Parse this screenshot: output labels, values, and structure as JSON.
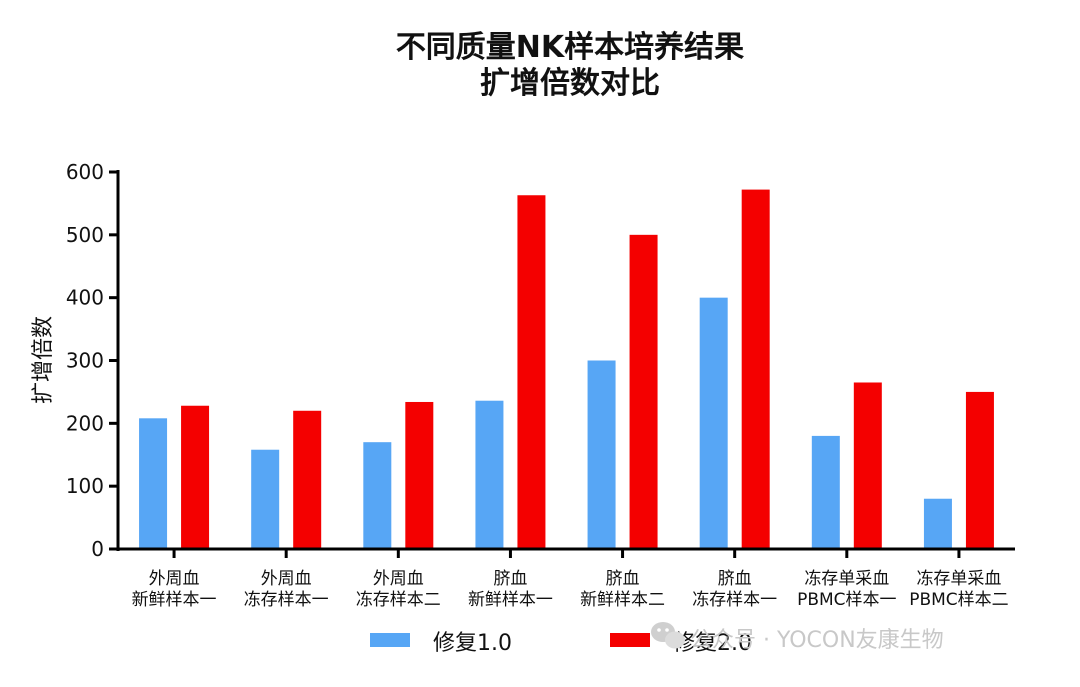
{
  "chart_data": {
    "type": "bar",
    "title": [
      "不同质量NK样本培养结果",
      "扩增倍数对比"
    ],
    "ylabel": "扩增倍数",
    "xlabel": "",
    "ylim": [
      0,
      600
    ],
    "yticks": [
      0,
      100,
      200,
      300,
      400,
      500,
      600
    ],
    "categories": [
      [
        "外周血",
        "新鲜样本一"
      ],
      [
        "外周血",
        "冻存样本一"
      ],
      [
        "外周血",
        "冻存样本二"
      ],
      [
        "脐血",
        "新鲜样本一"
      ],
      [
        "脐血",
        "新鲜样本二"
      ],
      [
        "脐血",
        "冻存样本一"
      ],
      [
        "冻存单采血",
        "PBMC样本一"
      ],
      [
        "冻存单采血",
        "PBMC样本二"
      ]
    ],
    "series": [
      {
        "name": "修复1.0",
        "color": "#57a6f5",
        "values": [
          208,
          158,
          170,
          236,
          300,
          400,
          180,
          80
        ]
      },
      {
        "name": "修复2.0",
        "color": "#f40000",
        "values": [
          228,
          220,
          234,
          563,
          500,
          572,
          265,
          250
        ]
      }
    ],
    "grid": false,
    "legend": "bottom-center"
  },
  "watermark": {
    "text": "公众号 · YOCON友康生物",
    "icon": "wechat-icon"
  }
}
